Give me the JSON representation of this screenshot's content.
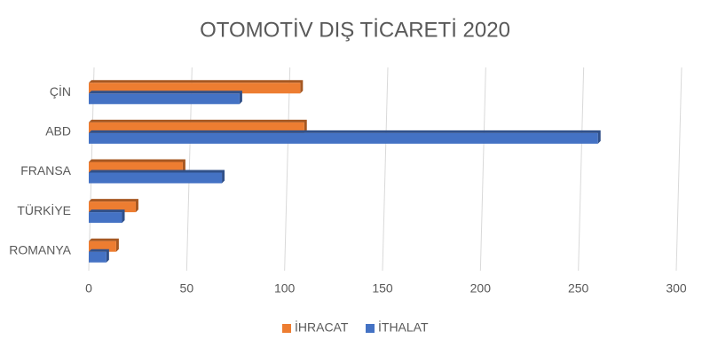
{
  "chart_data": {
    "type": "hbar",
    "title": "OTOMOTİV DIŞ TİCARETİ 2020",
    "categories": [
      "ÇİN",
      "ABD",
      "FRANSA",
      "TÜRKİYE",
      "ROMANYA"
    ],
    "series": [
      {
        "name": "İHRACAT",
        "color": "#ed7d31",
        "values": [
          108,
          110,
          48,
          24,
          14
        ]
      },
      {
        "name": "İTHALAT",
        "color": "#4472c4",
        "values": [
          77,
          260,
          68,
          17,
          9
        ]
      }
    ],
    "xlim": [
      0,
      300
    ],
    "xticks": [
      0,
      50,
      100,
      150,
      200,
      250,
      300
    ],
    "grid": true,
    "legend": "bottom"
  }
}
